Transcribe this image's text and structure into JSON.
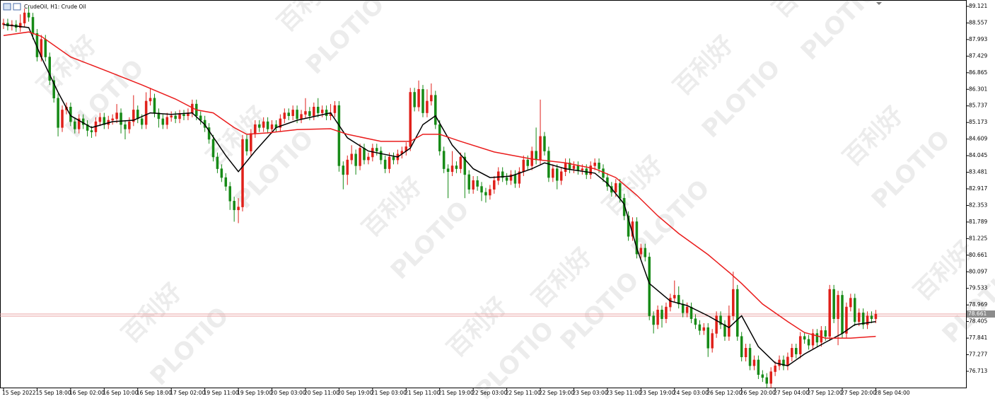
{
  "window": {
    "title": "CrudeOil, H1:  Crude Oil"
  },
  "watermark": [
    "百利好",
    "PLOTIO"
  ],
  "chart_data": {
    "type": "candlestick",
    "categories": [
      "15 Sep 2022",
      null,
      null,
      null,
      null,
      null,
      null,
      null,
      "15 Sep 18:00",
      null,
      null,
      null,
      null,
      null,
      null,
      null,
      "16 Sep 02:00",
      null,
      null,
      null,
      null,
      null,
      null,
      null,
      "16 Sep 10:00",
      null,
      null,
      null,
      null,
      null,
      null,
      null,
      "16 Sep 18:00",
      null,
      null,
      null,
      null,
      null,
      null,
      null,
      "17 Sep 02:00",
      null,
      null,
      null,
      null,
      null,
      null,
      null,
      "19 Sep 11:00",
      null,
      null,
      null,
      null,
      null,
      null,
      null,
      "19 Sep 19:00",
      null,
      null,
      null,
      null,
      null,
      null,
      null,
      "20 Sep 03:00",
      null,
      null,
      null,
      null,
      null,
      null,
      null,
      "20 Sep 11:00",
      null,
      null,
      null,
      null,
      null,
      null,
      null,
      "20 Sep 19:00",
      null,
      null,
      null,
      null,
      null,
      null,
      null,
      "21 Sep 03:00",
      null,
      null,
      null,
      null,
      null,
      null,
      null,
      "21 Sep 11:00",
      null,
      null,
      null,
      null,
      null,
      null,
      null,
      "21 Sep 19:00",
      null,
      null,
      null,
      null,
      null,
      null,
      null,
      "22 Sep 03:00",
      null,
      null,
      null,
      null,
      null,
      null,
      null,
      "22 Sep 11:00",
      null,
      null,
      null,
      null,
      null,
      null,
      null,
      "22 Sep 19:00",
      null,
      null,
      null,
      null,
      null,
      null,
      null,
      "23 Sep 03:00",
      null,
      null,
      null,
      null,
      null,
      null,
      null,
      "23 Sep 11:00",
      null,
      null,
      null,
      null,
      null,
      null,
      null,
      "23 Sep 19:00",
      null,
      null,
      null,
      null,
      null,
      null,
      null,
      "24 Sep 03:00",
      null,
      null,
      null,
      null,
      null,
      null,
      null,
      "26 Sep 12:00",
      null,
      null,
      null,
      null,
      null,
      null,
      null,
      "26 Sep 20:00",
      null,
      null,
      null,
      null,
      null,
      null,
      null,
      "27 Sep 04:00",
      null,
      null,
      null,
      null,
      null,
      null,
      null,
      "27 Sep 12:00",
      null,
      null,
      null,
      null,
      null,
      null,
      null,
      "27 Sep 20:00",
      null,
      null,
      null,
      null,
      null,
      null,
      null,
      "28 Sep 04:00"
    ],
    "open": [
      88.5,
      88.55,
      88.45,
      88.5,
      88.4,
      88.55,
      88.9,
      88.75,
      88.2,
      87.4,
      88.0,
      87.4,
      86.6,
      86.0,
      85.0,
      85.6,
      85.7,
      85.2,
      84.95,
      85.3,
      85.1,
      84.9,
      84.85,
      85.2,
      85.35,
      85.1,
      85.25,
      85.3,
      85.5,
      85.1,
      84.95,
      85.2,
      85.6,
      85.3,
      85.1,
      85.9,
      86.0,
      85.5,
      85.3,
      85.1,
      85.35,
      85.4,
      85.3,
      85.45,
      85.4,
      85.5,
      85.8,
      85.4,
      85.25,
      85.0,
      84.6,
      84.0,
      83.6,
      83.3,
      83.0,
      82.5,
      82.2,
      82.3,
      84.6,
      84.2,
      84.8,
      85.1,
      85.0,
      85.2,
      84.95,
      85.1,
      85.0,
      85.3,
      85.5,
      85.4,
      85.6,
      85.3,
      85.45,
      85.55,
      85.4,
      85.7,
      85.5,
      85.6,
      85.4,
      85.5,
      85.75,
      83.7,
      83.4,
      83.9,
      84.1,
      83.7,
      84.3,
      83.9,
      84.0,
      84.3,
      84.2,
      83.9,
      83.6,
      84.0,
      83.9,
      84.1,
      84.2,
      84.35,
      86.2,
      85.7,
      86.3,
      85.5,
      85.9,
      86.1,
      85.1,
      84.2,
      83.6,
      83.5,
      83.7,
      83.6,
      84.0,
      83.4,
      82.9,
      83.2,
      83.0,
      82.8,
      82.7,
      82.9,
      83.2,
      83.5,
      83.3,
      83.2,
      83.4,
      83.1,
      83.5,
      83.9,
      83.7,
      84.2,
      83.9,
      84.7,
      84.2,
      83.3,
      83.6,
      83.2,
      83.5,
      83.8,
      83.6,
      83.7,
      83.55,
      83.6,
      83.4,
      83.7,
      83.8,
      83.6,
      83.3,
      83.0,
      82.8,
      83.1,
      82.6,
      82.0,
      81.3,
      81.8,
      80.7,
      80.9,
      80.6,
      78.6,
      78.3,
      78.8,
      78.5,
      78.9,
      79.2,
      79.3,
      79.0,
      78.7,
      78.9,
      78.5,
      78.3,
      78.1,
      78.2,
      77.5,
      78.0,
      78.6,
      78.3,
      77.9,
      78.6,
      79.5,
      77.9,
      77.2,
      77.5,
      76.9,
      77.1,
      76.6,
      76.5,
      76.3,
      76.7,
      76.9,
      77.1,
      76.9,
      77.2,
      77.5,
      77.3,
      77.9,
      77.8,
      77.6,
      78.0,
      77.7,
      78.1,
      77.9,
      79.5,
      78.5,
      79.3,
      78.0,
      78.9,
      79.2,
      78.4,
      78.7,
      78.3,
      78.6,
      78.5
    ],
    "high": [
      88.7,
      88.7,
      88.65,
      88.65,
      88.85,
      89.05,
      89.1,
      88.9,
      88.35,
      88.15,
      88.15,
      87.55,
      86.75,
      86.15,
      85.75,
      85.85,
      85.85,
      85.35,
      85.45,
      85.45,
      85.25,
      85.05,
      85.35,
      85.5,
      85.5,
      85.4,
      85.45,
      85.8,
      85.65,
      85.25,
      85.35,
      86.1,
      85.75,
      85.45,
      86.2,
      86.35,
      86.15,
      85.65,
      85.45,
      85.5,
      85.55,
      85.55,
      85.6,
      85.6,
      85.65,
      85.95,
      85.95,
      85.55,
      85.4,
      85.15,
      84.75,
      84.15,
      83.75,
      83.45,
      83.15,
      82.65,
      82.6,
      84.75,
      84.75,
      84.95,
      85.25,
      85.25,
      85.35,
      85.35,
      85.25,
      85.25,
      85.45,
      85.65,
      85.65,
      85.75,
      85.75,
      85.6,
      86.0,
      85.7,
      85.85,
      86.0,
      85.75,
      85.75,
      85.8,
      85.9,
      85.9,
      83.85,
      84.05,
      84.4,
      84.25,
      84.45,
      84.45,
      84.15,
      84.45,
      84.45,
      84.35,
      84.05,
      84.15,
      84.15,
      84.25,
      84.35,
      84.5,
      86.35,
      86.35,
      86.6,
      86.45,
      86.3,
      86.5,
      86.25,
      85.25,
      84.35,
      83.75,
      84.2,
      83.85,
      84.15,
      84.15,
      83.55,
      83.35,
      83.35,
      83.15,
      82.95,
      83.05,
      83.35,
      83.65,
      83.65,
      83.45,
      83.55,
      83.55,
      83.65,
      84.05,
      84.05,
      84.35,
      85.0,
      85.95,
      84.85,
      84.35,
      83.75,
      83.75,
      83.65,
      83.95,
      83.95,
      83.85,
      83.85,
      83.75,
      83.75,
      83.85,
      83.95,
      83.95,
      83.75,
      83.45,
      83.15,
      83.25,
      83.25,
      82.75,
      82.15,
      81.95,
      81.95,
      81.05,
      81.05,
      80.75,
      78.75,
      78.95,
      78.95,
      79.05,
      79.35,
      79.8,
      79.6,
      79.15,
      79.05,
      79.05,
      78.65,
      78.45,
      78.35,
      78.35,
      78.15,
      78.75,
      78.75,
      78.45,
      78.95,
      80.1,
      79.65,
      78.05,
      77.65,
      77.65,
      77.25,
      77.25,
      76.75,
      76.65,
      76.85,
      77.05,
      77.25,
      77.25,
      77.35,
      77.65,
      77.65,
      78.05,
      78.05,
      77.95,
      78.15,
      78.15,
      78.25,
      78.25,
      79.65,
      79.65,
      79.45,
      79.45,
      79.05,
      79.35,
      79.35,
      78.85,
      78.85,
      78.75,
      78.75,
      78.8
    ],
    "low": [
      88.35,
      88.3,
      88.3,
      88.25,
      88.25,
      88.4,
      88.6,
      88.0,
      87.25,
      87.25,
      87.25,
      86.45,
      85.85,
      84.7,
      84.85,
      85.45,
      85.05,
      84.8,
      84.8,
      84.95,
      84.7,
      84.65,
      84.7,
      85.05,
      84.95,
      84.95,
      85.1,
      85.15,
      84.8,
      84.6,
      84.8,
      85.05,
      85.15,
      84.95,
      84.95,
      85.75,
      85.35,
      85.0,
      84.95,
      84.95,
      85.2,
      85.15,
      85.15,
      85.25,
      85.25,
      85.35,
      85.25,
      85.1,
      84.85,
      84.45,
      83.85,
      83.45,
      83.15,
      82.85,
      82.2,
      81.8,
      81.75,
      82.15,
      84.05,
      84.05,
      84.65,
      84.85,
      84.85,
      84.8,
      84.8,
      84.85,
      84.85,
      85.15,
      85.25,
      85.25,
      85.15,
      85.15,
      85.3,
      85.25,
      85.25,
      85.35,
      85.35,
      85.25,
      85.25,
      85.35,
      83.5,
      82.9,
      83.05,
      83.75,
      83.4,
      83.55,
      83.75,
      83.75,
      83.85,
      84.05,
      83.75,
      83.45,
      83.45,
      83.75,
      83.75,
      83.95,
      84.05,
      84.2,
      85.55,
      85.55,
      85.35,
      85.35,
      85.75,
      84.95,
      84.05,
      83.45,
      82.6,
      83.35,
      83.45,
      83.45,
      82.6,
      82.75,
      82.75,
      82.85,
      82.5,
      82.45,
      82.55,
      82.75,
      83.05,
      83.15,
      83.05,
      83.05,
      82.95,
      82.95,
      83.35,
      83.55,
      83.55,
      83.75,
      83.75,
      84.05,
      83.15,
      83.15,
      82.9,
      83.05,
      83.35,
      83.45,
      83.45,
      83.4,
      83.4,
      83.25,
      83.25,
      83.55,
      83.45,
      83.15,
      82.85,
      82.65,
      82.65,
      82.45,
      81.85,
      81.15,
      81.15,
      80.55,
      80.55,
      80.45,
      78.45,
      78.0,
      78.15,
      78.2,
      78.35,
      78.75,
      79.05,
      78.85,
      78.55,
      78.55,
      78.35,
      78.15,
      77.95,
      77.95,
      77.2,
      77.35,
      77.85,
      78.15,
      77.75,
      77.75,
      78.45,
      77.75,
      77.05,
      77.05,
      76.75,
      76.75,
      76.45,
      76.35,
      76.15,
      76.15,
      76.55,
      76.75,
      76.75,
      76.75,
      77.05,
      77.15,
      77.15,
      77.65,
      77.45,
      77.45,
      77.55,
      77.55,
      77.75,
      77.75,
      78.35,
      77.6,
      77.85,
      77.85,
      78.75,
      78.25,
      78.25,
      78.15,
      78.15,
      78.35,
      78.35
    ],
    "close": [
      88.55,
      88.45,
      88.5,
      88.4,
      88.55,
      88.9,
      88.75,
      88.2,
      87.4,
      88.0,
      87.4,
      86.6,
      86.0,
      85.0,
      85.6,
      85.7,
      85.2,
      84.95,
      85.3,
      85.1,
      84.9,
      84.85,
      85.2,
      85.35,
      85.1,
      85.25,
      85.3,
      85.5,
      85.1,
      84.95,
      85.2,
      85.6,
      85.3,
      85.1,
      85.9,
      86.0,
      85.5,
      85.3,
      85.1,
      85.35,
      85.4,
      85.3,
      85.45,
      85.4,
      85.5,
      85.8,
      85.4,
      85.25,
      85.0,
      84.6,
      84.0,
      83.6,
      83.3,
      83.0,
      82.5,
      82.2,
      82.3,
      84.6,
      84.2,
      84.8,
      85.1,
      85.0,
      85.2,
      84.95,
      85.1,
      85.0,
      85.3,
      85.5,
      85.4,
      85.6,
      85.3,
      85.45,
      85.55,
      85.4,
      85.7,
      85.5,
      85.6,
      85.4,
      85.5,
      85.75,
      83.7,
      83.4,
      83.9,
      84.1,
      83.7,
      84.3,
      83.9,
      84.0,
      84.3,
      84.2,
      83.9,
      83.6,
      84.0,
      83.9,
      84.1,
      84.2,
      84.35,
      86.2,
      85.7,
      86.3,
      85.5,
      85.9,
      86.1,
      85.1,
      84.2,
      83.6,
      83.5,
      83.7,
      83.6,
      84.0,
      83.4,
      82.9,
      83.2,
      83.0,
      82.8,
      82.7,
      82.9,
      83.2,
      83.5,
      83.3,
      83.2,
      83.4,
      83.1,
      83.5,
      83.9,
      83.7,
      84.2,
      83.9,
      84.7,
      84.2,
      83.3,
      83.6,
      83.2,
      83.5,
      83.8,
      83.6,
      83.7,
      83.55,
      83.6,
      83.4,
      83.7,
      83.8,
      83.6,
      83.3,
      83.0,
      82.8,
      83.1,
      82.6,
      82.0,
      81.3,
      81.8,
      80.7,
      80.9,
      80.6,
      78.6,
      78.3,
      78.8,
      78.5,
      78.9,
      79.2,
      79.3,
      79.0,
      78.7,
      78.9,
      78.5,
      78.3,
      78.1,
      78.2,
      77.5,
      78.0,
      78.6,
      78.3,
      77.9,
      78.6,
      79.5,
      77.9,
      77.2,
      77.5,
      76.9,
      77.1,
      76.6,
      76.5,
      76.3,
      76.7,
      76.9,
      77.1,
      76.9,
      77.2,
      77.5,
      77.3,
      77.9,
      77.8,
      77.6,
      78.0,
      77.7,
      78.1,
      77.9,
      79.5,
      78.5,
      79.3,
      78.0,
      78.9,
      79.2,
      78.4,
      78.7,
      78.3,
      78.6,
      78.5,
      78.66
    ],
    "up_color": "#e0201a",
    "down_color": "#168a16",
    "lines": [
      {
        "color": "#000000",
        "x": [
          0,
          6,
          9,
          13,
          16,
          21,
          26,
          31,
          35,
          40,
          45,
          48,
          53,
          56,
          60,
          65,
          70,
          78,
          82,
          87,
          94,
          97,
          100,
          103,
          107,
          112,
          116,
          121,
          126,
          129,
          134,
          141,
          144,
          148,
          151,
          154,
          159,
          163,
          168,
          173,
          176,
          180,
          184,
          187,
          191,
          196,
          200,
          203,
          208
        ],
        "values": [
          88.5,
          88.4,
          87.4,
          86.2,
          85.4,
          85.0,
          85.2,
          85.25,
          85.5,
          85.45,
          85.5,
          85.1,
          84.05,
          83.5,
          84.2,
          85.0,
          85.25,
          85.5,
          84.65,
          84.2,
          84.0,
          84.3,
          85.1,
          85.4,
          84.4,
          83.6,
          83.3,
          83.35,
          83.6,
          83.8,
          83.6,
          83.45,
          83.1,
          82.4,
          80.9,
          79.7,
          79.1,
          78.95,
          78.6,
          78.2,
          78.6,
          77.55,
          77.0,
          76.9,
          77.3,
          77.7,
          78.0,
          78.3,
          78.4
        ]
      },
      {
        "color": "#ea1c1c",
        "x": [
          0,
          6,
          9,
          16,
          25,
          33,
          41,
          46,
          50,
          55,
          58,
          63,
          70,
          78,
          82,
          90,
          97,
          100,
          104,
          109,
          117,
          126,
          134,
          141,
          146,
          151,
          156,
          161,
          168,
          173,
          176,
          181,
          187,
          191,
          196,
          202,
          208
        ],
        "values": [
          88.13,
          88.25,
          88.1,
          87.4,
          86.9,
          86.45,
          85.97,
          85.6,
          85.5,
          85.0,
          84.77,
          84.82,
          84.93,
          84.96,
          84.77,
          84.53,
          84.53,
          84.77,
          84.77,
          84.53,
          84.17,
          83.93,
          83.8,
          83.6,
          83.3,
          82.7,
          82.0,
          81.4,
          80.68,
          80.08,
          79.7,
          79.0,
          78.4,
          78.03,
          77.84,
          77.84,
          77.9
        ]
      }
    ],
    "price_line": 78.661,
    "ylim": [
      76.16,
      89.337
    ],
    "yticks": [
      89.121,
      88.557,
      87.993,
      87.429,
      86.865,
      86.301,
      85.737,
      85.173,
      84.609,
      84.045,
      83.481,
      82.917,
      82.353,
      81.789,
      81.225,
      80.661,
      80.097,
      79.533,
      78.969,
      78.405,
      77.841,
      77.277,
      76.713
    ]
  }
}
